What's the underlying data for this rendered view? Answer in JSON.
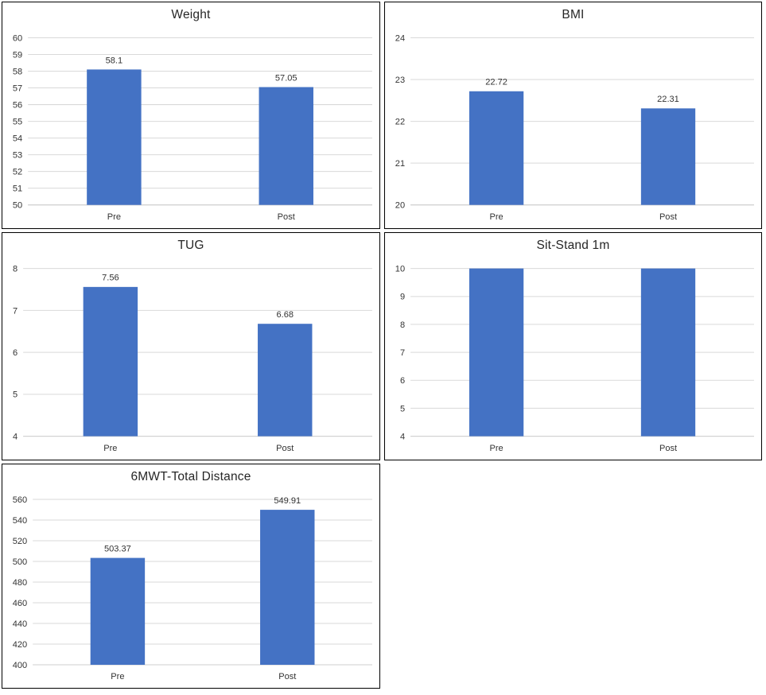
{
  "page": {
    "background": "#ffffff",
    "panel_border_color": "#000000"
  },
  "style": {
    "bar_color": "#4472C4",
    "gridline_color": "#D9D9D9",
    "axis_line_color": "#CFCFCF",
    "tick_label_color": "#333333",
    "title_color": "#262626"
  },
  "chart_data": [
    {
      "type": "bar",
      "title": "Weight",
      "categories": [
        "Pre",
        "Post"
      ],
      "values": [
        58.1,
        57.05
      ],
      "value_labels": [
        "58.1",
        "57.05"
      ],
      "show_value_labels": true,
      "ylim": [
        50,
        60
      ],
      "ytick_step": 1,
      "grid": true,
      "legend": "none"
    },
    {
      "type": "bar",
      "title": "BMI",
      "categories": [
        "Pre",
        "Post"
      ],
      "values": [
        22.72,
        22.31
      ],
      "value_labels": [
        "22.72",
        "22.31"
      ],
      "show_value_labels": true,
      "ylim": [
        20,
        24
      ],
      "ytick_step": 1,
      "grid": true,
      "legend": "none"
    },
    {
      "type": "bar",
      "title": "TUG",
      "categories": [
        "Pre",
        "Post"
      ],
      "values": [
        7.56,
        6.68
      ],
      "value_labels": [
        "7.56",
        "6.68"
      ],
      "show_value_labels": true,
      "ylim": [
        4,
        8
      ],
      "ytick_step": 1,
      "grid": true,
      "legend": "none"
    },
    {
      "type": "bar",
      "title": "Sit-Stand 1m",
      "categories": [
        "Pre",
        "Post"
      ],
      "values": [
        10,
        10
      ],
      "value_labels": [
        "",
        ""
      ],
      "show_value_labels": false,
      "ylim": [
        4,
        10
      ],
      "ytick_step": 1,
      "grid": true,
      "legend": "none"
    },
    {
      "type": "bar",
      "title": "6MWT-Total Distance",
      "categories": [
        "Pre",
        "Post"
      ],
      "values": [
        503.37,
        549.91
      ],
      "value_labels": [
        "503.37",
        "549.91"
      ],
      "show_value_labels": true,
      "ylim": [
        400,
        560
      ],
      "ytick_step": 20,
      "grid": true,
      "legend": "none"
    }
  ]
}
